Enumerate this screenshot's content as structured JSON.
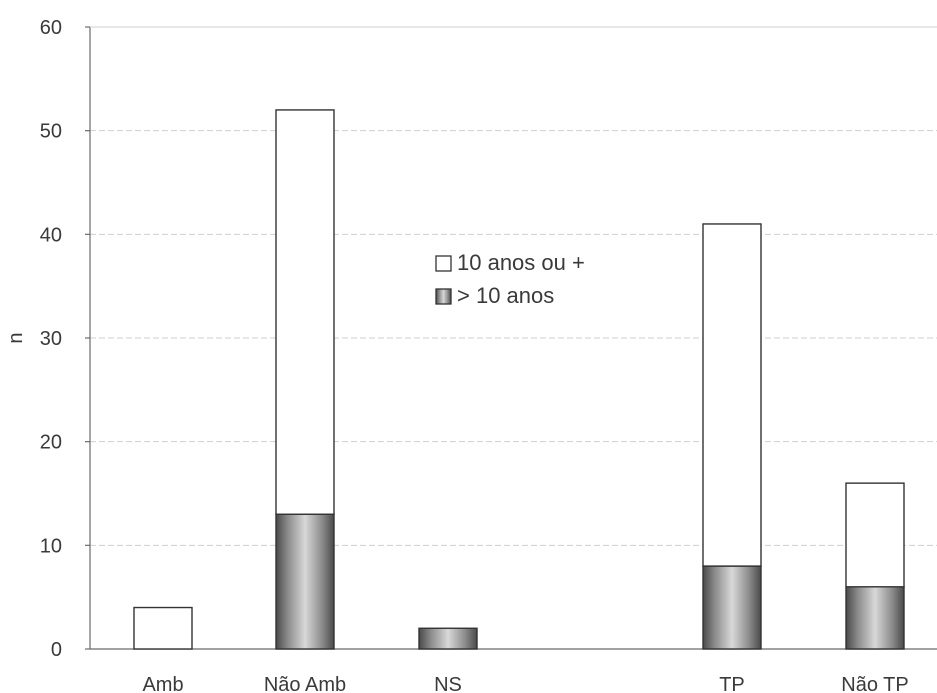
{
  "chart_data": {
    "type": "bar",
    "stacked": true,
    "categories": [
      "Amb",
      "Não Amb",
      "NS",
      "",
      "TP",
      "Não TP"
    ],
    "series": [
      {
        "name": "> 10 anos",
        "values": [
          0,
          13,
          2,
          null,
          8,
          6
        ],
        "color": "#9a9a9a",
        "fill": "shaded"
      },
      {
        "name": "10 anos ou +",
        "values": [
          4,
          39,
          0,
          null,
          33,
          10
        ],
        "color": "#ffffff",
        "fill": "plain"
      }
    ],
    "ylabel": "n",
    "xlabel": "",
    "title": "",
    "ylim": [
      0,
      60
    ],
    "yticks": [
      0,
      10,
      20,
      30,
      40,
      50,
      60
    ],
    "grid": true,
    "legend": {
      "placement": "center",
      "entries": [
        "10 anos ou +",
        "> 10 anos"
      ]
    }
  }
}
